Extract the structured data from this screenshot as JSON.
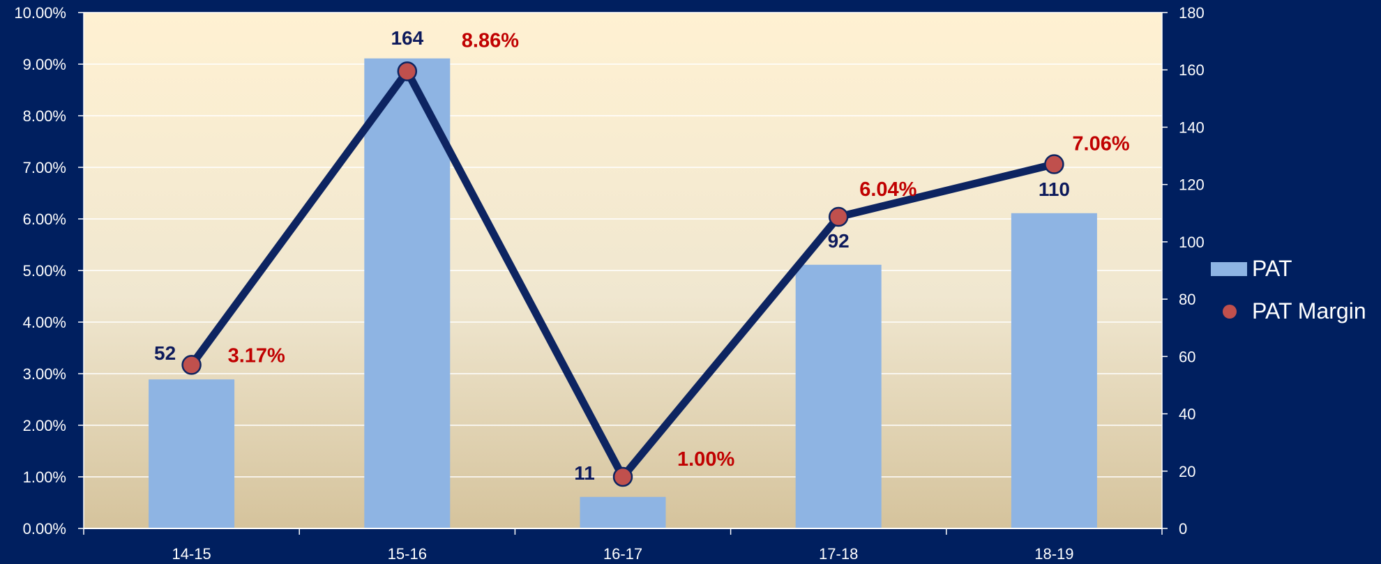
{
  "chart_data": {
    "type": "bar",
    "title": "",
    "categories": [
      "14-15",
      "15-16",
      "16-17",
      "17-18",
      "18-19"
    ],
    "series": [
      {
        "name": "PAT",
        "type": "bar",
        "axis": "right",
        "values": [
          52,
          164,
          11,
          92,
          110
        ],
        "labels": [
          "52",
          "164",
          "11",
          "92",
          "110"
        ]
      },
      {
        "name": "PAT Margin",
        "type": "line",
        "axis": "left",
        "values": [
          3.17,
          8.86,
          1.0,
          6.04,
          7.06
        ],
        "labels": [
          "3.17%",
          "8.86%",
          "1.00%",
          "6.04%",
          "7.06%"
        ]
      }
    ],
    "left_axis": {
      "ylim": [
        0,
        10
      ],
      "ticks": [
        "0.00%",
        "1.00%",
        "2.00%",
        "3.00%",
        "4.00%",
        "5.00%",
        "6.00%",
        "7.00%",
        "8.00%",
        "9.00%",
        "10.00%"
      ]
    },
    "right_axis": {
      "ylim": [
        0,
        180
      ],
      "ticks": [
        "0",
        "20",
        "40",
        "60",
        "80",
        "100",
        "120",
        "140",
        "160",
        "180"
      ]
    },
    "grid": true,
    "legend": "right",
    "colors": {
      "background": "#001f5f",
      "bar": "#8eb4e3",
      "line": "#0d2461",
      "marker": "#c0504d",
      "bar_label": "#0d1a5c",
      "line_label": "#c00000",
      "axis_text": "#ffffff"
    }
  }
}
